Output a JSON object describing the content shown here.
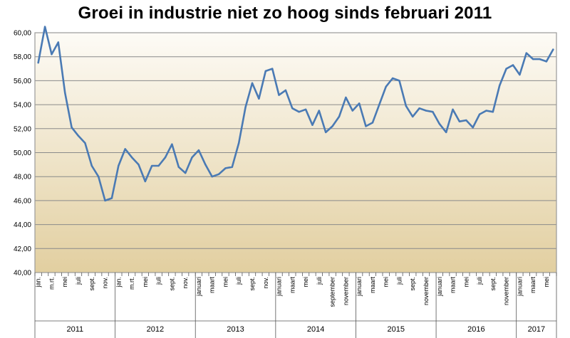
{
  "chart_data": {
    "type": "line",
    "title": "Groei in industrie niet zo hoog sinds februari 2011",
    "xlabel": "",
    "ylabel": "",
    "ylim": [
      40,
      60
    ],
    "y_ticks": [
      "40,00",
      "42,00",
      "44,00",
      "46,00",
      "48,00",
      "50,00",
      "52,00",
      "54,00",
      "56,00",
      "58,00",
      "60,00"
    ],
    "grid": "horizontal",
    "legend": "none",
    "colors": {
      "line": "#4a7ab4",
      "grid": "#8a8a8a",
      "bg_top": "#fdfbf6",
      "bg_bottom": "#e2cfa0",
      "frame": "#9a9a9a"
    },
    "month_labels": [
      "jan.",
      "",
      "m.rt.",
      "",
      "mei",
      "",
      "juli",
      "",
      "sept.",
      "",
      "nov.",
      "",
      "jan.",
      "",
      "m.rt.",
      "",
      "mei",
      "",
      "juli",
      "",
      "sept.",
      "",
      "nov.",
      "",
      "januari",
      "",
      "maart",
      "",
      "mei",
      "",
      "juli",
      "",
      "sept.",
      "",
      "nov.",
      "",
      "januari",
      "",
      "maart",
      "",
      "mei",
      "",
      "juli",
      "",
      "september",
      "",
      "november",
      "",
      "januari",
      "",
      "maart",
      "",
      "mei",
      "",
      "juli",
      "",
      "sept.",
      "",
      "november",
      "",
      "januari",
      "",
      "maart",
      "",
      "mei",
      "",
      "juli",
      "",
      "sept.",
      "",
      "november",
      "",
      "januari",
      "",
      "maart",
      "",
      "mei",
      ""
    ],
    "years": [
      {
        "label": "2011",
        "months": 12
      },
      {
        "label": "2012",
        "months": 12
      },
      {
        "label": "2013",
        "months": 12
      },
      {
        "label": "2014",
        "months": 12
      },
      {
        "label": "2015",
        "months": 12
      },
      {
        "label": "2016",
        "months": 12
      },
      {
        "label": "2017",
        "months": 6
      }
    ],
    "series": [
      {
        "values": [
          57.5,
          60.5,
          58.2,
          59.2,
          55.0,
          52.1,
          51.4,
          50.8,
          48.9,
          48.0,
          46.0,
          46.2,
          48.9,
          50.3,
          49.6,
          49.0,
          47.6,
          48.9,
          48.9,
          49.6,
          50.7,
          48.8,
          48.3,
          49.6,
          50.2,
          49.0,
          48.0,
          48.2,
          48.7,
          48.8,
          50.8,
          53.8,
          55.8,
          54.5,
          56.8,
          57.0,
          54.8,
          55.2,
          53.7,
          53.4,
          53.6,
          52.3,
          53.5,
          51.7,
          52.2,
          53.0,
          54.6,
          53.5,
          54.1,
          52.2,
          52.5,
          54.0,
          55.5,
          56.2,
          56.0,
          53.9,
          53.0,
          53.7,
          53.5,
          53.4,
          52.4,
          51.7,
          53.6,
          52.6,
          52.7,
          52.1,
          53.2,
          53.5,
          53.4,
          55.6,
          57.0,
          57.3,
          56.5,
          58.3,
          57.8,
          57.8,
          57.6,
          58.6
        ]
      }
    ]
  }
}
